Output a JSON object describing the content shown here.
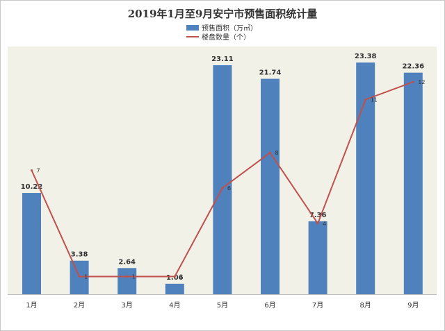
{
  "chart_data": {
    "type": "bar",
    "title": "2019年1月至9月安宁市预售面积统计量",
    "categories": [
      "1月",
      "2月",
      "3月",
      "4月",
      "5月",
      "6月",
      "7月",
      "8月",
      "9月"
    ],
    "series": [
      {
        "name": "预售面积（万㎡）",
        "type": "bar",
        "values": [
          10.22,
          3.38,
          2.64,
          1.06,
          23.11,
          21.74,
          7.36,
          23.38,
          22.36
        ],
        "color": "#4f81bd"
      },
      {
        "name": "楼盘数量（个）",
        "type": "line",
        "values": [
          7,
          1,
          1,
          1,
          6,
          8,
          4,
          11,
          12
        ],
        "color": "#c0504d"
      }
    ],
    "bar_ylim": [
      0,
      25
    ],
    "line_ylim": [
      0,
      14
    ],
    "plot_background": "#f2f1e8",
    "grid": false,
    "legend": "top-center"
  }
}
